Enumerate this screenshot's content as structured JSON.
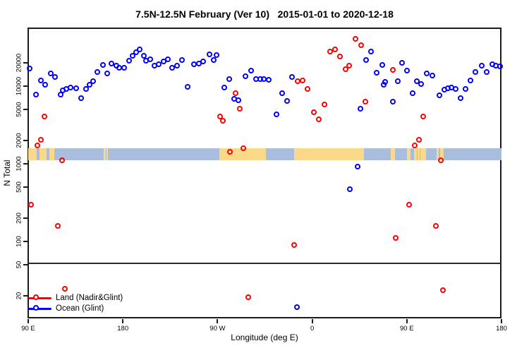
{
  "title": "7.5N-12.5N February (Ver 10)   2015-01-01 to 2020-12-18",
  "legend": {
    "items": [
      {
        "label": "Land (Nadir&Glint)",
        "color": "#ff0000"
      },
      {
        "label": "Ocean (Glint)",
        "color": "#0000ff"
      }
    ]
  },
  "chart_data": {
    "type": "scatter",
    "title": "7.5N-12.5N February (Ver 10)   2015-01-01 to 2020-12-18",
    "xlabel": "Longitude (deg E)",
    "ylabel": "N Total",
    "x_axis": {
      "span_deg": 450,
      "ticks_deg": [
        0,
        90,
        180,
        270,
        360,
        450
      ],
      "tick_labels": [
        "90 E",
        "180",
        "90 W",
        "0",
        "90 E",
        "180"
      ]
    },
    "y_axis": {
      "scale": "log",
      "ticks": [
        20,
        50,
        100,
        200,
        500,
        1000,
        2000,
        5000,
        10000,
        20000
      ],
      "range": [
        12,
        55000
      ]
    },
    "reference_line_n": 52,
    "map_strip": {
      "ocean_color": "#a9bedc",
      "land_color": "#fbd98a",
      "n_range": [
        1100,
        1570
      ],
      "land_segments_deg": [
        [
          0,
          8
        ],
        [
          10.5,
          17.5
        ],
        [
          20,
          25
        ],
        [
          72,
          73.5
        ],
        [
          74.5,
          76
        ],
        [
          181.5,
          226
        ],
        [
          252.5,
          319.5
        ],
        [
          345,
          348.5
        ],
        [
          360,
          363.5
        ],
        [
          367,
          369.5
        ],
        [
          370.5,
          372
        ],
        [
          373,
          378.5
        ],
        [
          388.5,
          390.5
        ],
        [
          391.5,
          395
        ]
      ]
    },
    "series": [
      {
        "name": "Land (Nadir&Glint)",
        "color": "#ff0000",
        "points": [
          [
            2.7,
            290
          ],
          [
            8.9,
            1700
          ],
          [
            12.7,
            2000
          ],
          [
            15.6,
            4000
          ],
          [
            28.6,
            155
          ],
          [
            32.8,
            1100
          ],
          [
            35.3,
            24
          ],
          [
            183,
            4000
          ],
          [
            185.7,
            3500
          ],
          [
            192,
            1400
          ],
          [
            197.5,
            7900
          ],
          [
            201.4,
            5000
          ],
          [
            204.9,
            1550
          ],
          [
            209.8,
            19
          ],
          [
            253.3,
            89
          ],
          [
            256.3,
            11300
          ],
          [
            261.2,
            11700
          ],
          [
            265.6,
            9100
          ],
          [
            271.7,
            4500
          ],
          [
            276.8,
            3700
          ],
          [
            281.9,
            5700
          ],
          [
            287.5,
            27500
          ],
          [
            291.8,
            29100
          ],
          [
            296.5,
            23600
          ],
          [
            301.8,
            16300
          ],
          [
            305.4,
            18100
          ],
          [
            311.6,
            40000
          ],
          [
            317,
            33000
          ],
          [
            321,
            6200
          ],
          [
            347.1,
            15800
          ],
          [
            350,
            110
          ],
          [
            362.3,
            290
          ],
          [
            367.8,
            1700
          ],
          [
            372.1,
            2000
          ],
          [
            375.7,
            4000
          ],
          [
            388,
            155
          ],
          [
            392.5,
            1100
          ],
          [
            394.6,
            23
          ]
        ]
      },
      {
        "name": "Ocean (Glint)",
        "color": "#0000ff",
        "points": [
          [
            1.8,
            16500
          ],
          [
            7.4,
            7700
          ],
          [
            12.7,
            11700
          ],
          [
            16.7,
            10200
          ],
          [
            21.6,
            14400
          ],
          [
            26.1,
            13000
          ],
          [
            31.3,
            7600
          ],
          [
            33,
            8600
          ],
          [
            36.4,
            9000
          ],
          [
            40.8,
            9500
          ],
          [
            45.7,
            9300
          ],
          [
            50.9,
            6900
          ],
          [
            55.1,
            9000
          ],
          [
            58.5,
            10300
          ],
          [
            61.8,
            11500
          ],
          [
            65.8,
            14800
          ],
          [
            71.4,
            18500
          ],
          [
            75.5,
            14200
          ],
          [
            79.7,
            19300
          ],
          [
            84.2,
            18000
          ],
          [
            87,
            17100
          ],
          [
            91.7,
            16800
          ],
          [
            96,
            20700
          ],
          [
            99.8,
            24100
          ],
          [
            102.7,
            27000
          ],
          [
            106.5,
            29300
          ],
          [
            110.5,
            24100
          ],
          [
            112.5,
            20800
          ],
          [
            116.1,
            21600
          ],
          [
            120.1,
            18100
          ],
          [
            124.6,
            18900
          ],
          [
            128.8,
            20500
          ],
          [
            132.8,
            21600
          ],
          [
            137.3,
            16900
          ],
          [
            141.8,
            17900
          ],
          [
            146.7,
            21300
          ],
          [
            151.8,
            9700
          ],
          [
            158,
            18900
          ],
          [
            162.5,
            19400
          ],
          [
            166.7,
            20500
          ],
          [
            173,
            25200
          ],
          [
            176.8,
            21300
          ],
          [
            179.7,
            24900
          ],
          [
            186.5,
            9400
          ],
          [
            191.5,
            12200
          ],
          [
            196.4,
            6800
          ],
          [
            200.4,
            6500
          ],
          [
            207.1,
            13200
          ],
          [
            212.5,
            15500
          ],
          [
            217,
            12200
          ],
          [
            221,
            12200
          ],
          [
            224.3,
            12200
          ],
          [
            228.8,
            11900
          ],
          [
            236.6,
            4300
          ],
          [
            241.5,
            8000
          ],
          [
            246.7,
            6400
          ],
          [
            251.1,
            12800
          ],
          [
            255.6,
            14
          ],
          [
            306.2,
            460
          ],
          [
            313.2,
            900
          ],
          [
            316.3,
            5000
          ],
          [
            321.4,
            21300
          ],
          [
            326.3,
            27600
          ],
          [
            331.9,
            14700
          ],
          [
            337,
            18500
          ],
          [
            338.6,
            10200
          ],
          [
            339.9,
            11100
          ],
          [
            347.1,
            6200
          ],
          [
            351.6,
            11500
          ],
          [
            356.1,
            19800
          ],
          [
            360.5,
            15700
          ],
          [
            366.1,
            7900
          ],
          [
            370.1,
            11500
          ],
          [
            373.9,
            10400
          ],
          [
            379,
            14200
          ],
          [
            384.3,
            13400
          ],
          [
            391.1,
            7500
          ],
          [
            395.8,
            8800
          ],
          [
            399.1,
            9200
          ],
          [
            402.5,
            9500
          ],
          [
            406.5,
            9000
          ],
          [
            411.2,
            6900
          ],
          [
            416.3,
            9000
          ],
          [
            420.9,
            11600
          ],
          [
            425.2,
            14800
          ],
          [
            431.5,
            18100
          ],
          [
            436.4,
            14900
          ],
          [
            441.5,
            18800
          ],
          [
            445.3,
            18200
          ],
          [
            449.1,
            17800
          ]
        ]
      }
    ]
  }
}
